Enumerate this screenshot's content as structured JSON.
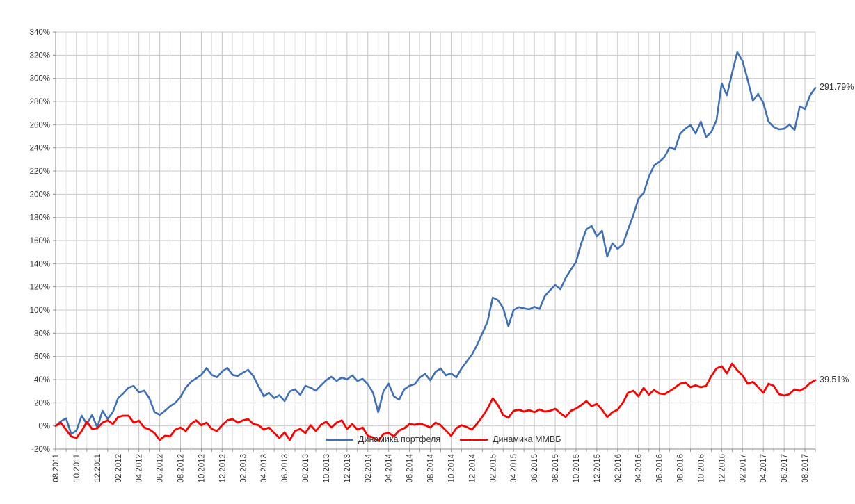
{
  "chart_data": {
    "type": "line",
    "title": "",
    "xlabel": "",
    "ylabel": "",
    "y_unit": "%",
    "y_range": [
      -20,
      340
    ],
    "y_tick_step": 20,
    "y_tick_labels": [
      "340%",
      "320%",
      "300%",
      "280%",
      "260%",
      "240%",
      "220%",
      "200%",
      "180%",
      "160%",
      "140%",
      "120%",
      "100%",
      "80%",
      "60%",
      "40%",
      "20%",
      "0%",
      "-20%"
    ],
    "x_tick_labels": [
      "08.2011",
      "10.2011",
      "12.2011",
      "02.2012",
      "04.2012",
      "06.2012",
      "08.2012",
      "10.2012",
      "12.2012",
      "02.2013",
      "04.2013",
      "06.2013",
      "08.2013",
      "10.2013",
      "12.2013",
      "02.2014",
      "04.2014",
      "06.2014",
      "08.2014",
      "10.2014",
      "12.2014",
      "02.2015",
      "04.2015",
      "06.2015",
      "08.2015",
      "10.2015",
      "12.2015",
      "02.2016",
      "04.2016",
      "06.2016",
      "08.2016",
      "10.2016",
      "12.2016",
      "02.2017",
      "04.2017",
      "06.2017",
      "08.2017"
    ],
    "x_tick_step_months": 2,
    "x_total_months": 73,
    "sample_step_months": 0.5,
    "grid": true,
    "legend_position": "bottom-center-inside",
    "series": [
      {
        "name": "Динамика портфеля",
        "color": "#3f6fb5",
        "end_label": "291.79%",
        "end_value": 291.79,
        "values": [
          0,
          4,
          6.5,
          -7,
          -4,
          8.8,
          1.6,
          9.4,
          -1.4,
          13,
          6,
          12,
          24,
          28,
          33,
          34.5,
          29,
          30.5,
          24,
          12,
          9.5,
          13,
          17,
          20,
          25,
          33,
          38,
          41,
          44,
          50,
          44,
          42,
          47,
          50,
          44,
          43,
          46,
          48.4,
          43,
          34,
          25.6,
          28.6,
          24,
          26.5,
          21.5,
          29.8,
          31.6,
          26.8,
          34.6,
          33,
          30.4,
          35,
          39.4,
          42.4,
          38.8,
          41.8,
          40,
          43.6,
          38.8,
          40.6,
          36,
          28.6,
          11.8,
          30,
          36.4,
          25.6,
          22.6,
          31.6,
          34.6,
          36,
          41.8,
          44.8,
          39.4,
          46.6,
          49.6,
          43.6,
          45.4,
          41.8,
          49.6,
          55.6,
          61.6,
          70,
          80,
          90,
          110.8,
          108.5,
          101.8,
          86,
          100,
          102.5,
          101.5,
          100.6,
          102.8,
          101,
          112,
          117,
          121.6,
          118,
          127.6,
          134.8,
          141.4,
          157.6,
          169.6,
          172.6,
          163.6,
          168.4,
          146.2,
          157.6,
          152.8,
          156.6,
          169.6,
          181.6,
          196,
          201,
          215,
          224.8,
          227.8,
          232,
          240.4,
          238.6,
          252,
          256.6,
          259.6,
          252.4,
          262.6,
          249.4,
          253.6,
          263.8,
          295.6,
          285.4,
          304.6,
          322.6,
          315,
          298.6,
          280.6,
          286.6,
          278.8,
          262.6,
          258,
          256,
          256.5,
          260.2,
          255.4,
          275.8,
          273.4,
          285.4,
          291.79
        ]
      },
      {
        "name": "Динамика ММВБ",
        "color": "#ff0000",
        "end_label": "39.51%",
        "end_value": 39.51,
        "values": [
          0,
          2.8,
          -3.2,
          -9.2,
          -10.4,
          -4.4,
          3.6,
          -2.6,
          -2,
          2.8,
          4.8,
          1.6,
          7.6,
          8.8,
          8.8,
          2.8,
          4.5,
          -1.4,
          -3,
          -6.2,
          -12.2,
          -8.6,
          -9,
          -3.2,
          -1.4,
          -4.4,
          1.6,
          4.8,
          0.6,
          2.8,
          -2.6,
          -4.4,
          0.6,
          4.8,
          5.8,
          2.8,
          4.8,
          5.8,
          1.6,
          0.6,
          -3.2,
          -1.4,
          -6,
          -10.4,
          -5.6,
          -12.2,
          -4.4,
          -2.6,
          -6.2,
          0.6,
          -4.4,
          1,
          3.6,
          -1.4,
          2.8,
          4.8,
          -2.6,
          1.6,
          -3.2,
          -1.4,
          -8.6,
          -10,
          -13,
          -7,
          -6,
          -9,
          -4,
          -2,
          1.6,
          1,
          2,
          0.6,
          -1.4,
          2.8,
          0.6,
          -4,
          -8.6,
          -2,
          0.6,
          -1,
          -3.2,
          2,
          8,
          15,
          23.8,
          18,
          9.4,
          7,
          13,
          14,
          12.4,
          13.6,
          11.8,
          14.2,
          12.4,
          13,
          14.8,
          11,
          7.6,
          13,
          15,
          18,
          21.4,
          17,
          19,
          14,
          7.6,
          11.8,
          14,
          20,
          28.6,
          30.4,
          25.6,
          32.8,
          27,
          31,
          28,
          27.4,
          30,
          33,
          36.4,
          37.6,
          33.4,
          35,
          33.4,
          34.6,
          43,
          49.6,
          51.4,
          45.4,
          53.8,
          48,
          43.6,
          36.4,
          38,
          33.4,
          28.6,
          36.4,
          34.6,
          27.4,
          26.2,
          27.4,
          31.6,
          30.4,
          32.8,
          37,
          39.51
        ]
      }
    ]
  }
}
